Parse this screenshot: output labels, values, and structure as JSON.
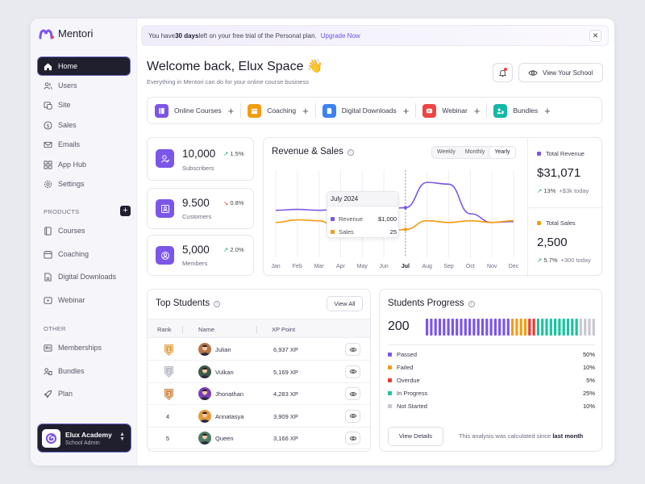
{
  "app": {
    "name": "Mentori"
  },
  "sidebar": {
    "items": [
      {
        "label": "Home",
        "icon": "home-icon"
      },
      {
        "label": "Users",
        "icon": "users-icon"
      },
      {
        "label": "Site",
        "icon": "site-icon"
      },
      {
        "label": "Sales",
        "icon": "dollar-icon"
      },
      {
        "label": "Emails",
        "icon": "mail-icon"
      },
      {
        "label": "App Hub",
        "icon": "grid-icon"
      },
      {
        "label": "Settings",
        "icon": "gear-icon"
      }
    ],
    "products_label": "PRODUCTS",
    "products": [
      {
        "label": "Courses",
        "icon": "book-icon"
      },
      {
        "label": "Coaching",
        "icon": "calendar-icon"
      },
      {
        "label": "Digital Downloads",
        "icon": "file-icon"
      },
      {
        "label": "Webinar",
        "icon": "play-icon"
      }
    ],
    "other_label": "OTHER",
    "other": [
      {
        "label": "Memberships",
        "icon": "membership-icon"
      },
      {
        "label": "Bundles",
        "icon": "bundle-icon"
      },
      {
        "label": "Plan",
        "icon": "rocket-icon"
      }
    ],
    "account": {
      "name": "Elux Academy",
      "role": "School Admin"
    }
  },
  "banner": {
    "pre": "You have ",
    "days": "30 days",
    "post": " left on your free trial of the Personal plan.",
    "link": "Upgrade Now"
  },
  "header": {
    "title": "Welcome back, Elux Space 👋",
    "subtitle": "Everything in Mentori can do for your online course business",
    "view_school": "View Your School"
  },
  "quick_actions": [
    {
      "label": "Online Courses",
      "color": "#7b56e8"
    },
    {
      "label": "Coaching",
      "color": "#f39c12"
    },
    {
      "label": "Digital Downloads",
      "color": "#3b82f6"
    },
    {
      "label": "Webinar",
      "color": "#ef4444"
    },
    {
      "label": "Bundles",
      "color": "#14b8a6"
    }
  ],
  "stats": [
    {
      "value": "10,000",
      "change": "1.5%",
      "direction": "up",
      "label": "Subscribers"
    },
    {
      "value": "9.500",
      "change": "0.8%",
      "direction": "down",
      "label": "Customers"
    },
    {
      "value": "5,000",
      "change": "2.0%",
      "direction": "up",
      "label": "Members"
    }
  ],
  "revenue": {
    "title": "Revenue & Sales",
    "tabs": [
      "Weekly",
      "Monthly",
      "Yearly"
    ],
    "active_tab": "Yearly",
    "tooltip": {
      "title": "July 2024",
      "revenue_label": "Revenue",
      "revenue_value": "$1,000",
      "sales_label": "Sales",
      "sales_value": "25"
    },
    "total_revenue_label": "Total Revenue",
    "total_revenue": "$31,071",
    "total_revenue_change": "13%",
    "total_revenue_delta": "+$3k today",
    "total_sales_label": "Total Sales",
    "total_sales": "2,500",
    "total_sales_change": "5.7%",
    "total_sales_delta": "+300 today"
  },
  "chart_data": {
    "type": "line",
    "x": [
      "Jan",
      "Feb",
      "Mar",
      "Apr",
      "May",
      "Jun",
      "Jul",
      "Aug",
      "Sep",
      "Oct",
      "Nov",
      "Dec"
    ],
    "series": [
      {
        "name": "Revenue",
        "color": "#7b56e8",
        "values": [
          54,
          55,
          54,
          55,
          54,
          55,
          57,
          86,
          84,
          50,
          40,
          41
        ]
      },
      {
        "name": "Sales",
        "color": "#f39c12",
        "values": [
          40,
          43,
          42,
          30,
          24,
          28,
          32,
          42,
          40,
          42,
          40,
          42
        ]
      }
    ],
    "ylim": [
      0,
      100
    ]
  },
  "top_students": {
    "title": "Top Students",
    "view_all": "View All",
    "columns": [
      "Rank",
      "Name",
      "XP Point"
    ],
    "rows": [
      {
        "rank": "1",
        "name": "Julian",
        "xp": "6,937 XP",
        "color": "#b5764a"
      },
      {
        "rank": "2",
        "name": "Vulkan",
        "xp": "5,169 XP",
        "color": "#3d5a4a"
      },
      {
        "rank": "3",
        "name": "Jhonathan",
        "xp": "4,283 XP",
        "color": "#7b3fb5"
      },
      {
        "rank": "4",
        "name": "Annatasya",
        "xp": "3,909 XP",
        "color": "#e39a3c"
      },
      {
        "rank": "5",
        "name": "Queen",
        "xp": "3,166 XP",
        "color": "#4c7b66"
      }
    ]
  },
  "progress": {
    "title": "Students Progress",
    "total": "200",
    "items": [
      {
        "label": "Passed",
        "value": "50%",
        "pct": 50,
        "color": "#7b56e8"
      },
      {
        "label": "Failed",
        "value": "10%",
        "pct": 10,
        "color": "#f39c12"
      },
      {
        "label": "Overdue",
        "value": "5%",
        "pct": 5,
        "color": "#e53935"
      },
      {
        "label": "In Progress",
        "value": "25%",
        "pct": 25,
        "color": "#19c3a0"
      },
      {
        "label": "Not Started",
        "value": "10%",
        "pct": 10,
        "color": "#c7c8d2"
      }
    ],
    "details_btn": "View Details",
    "note_pre": "This analysis was calculated since ",
    "note_bold": "last month"
  }
}
